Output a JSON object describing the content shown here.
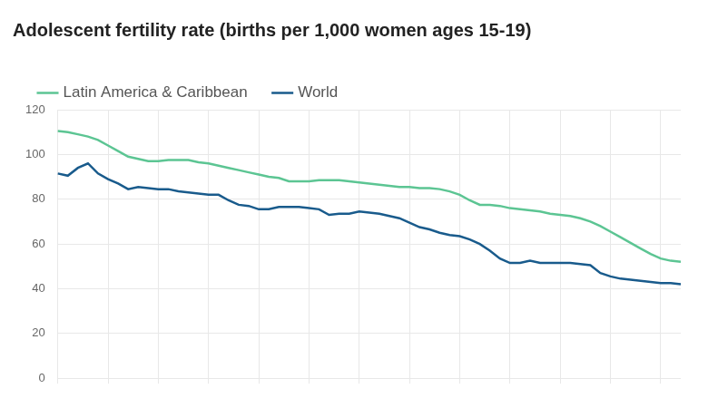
{
  "chart_data": {
    "type": "line",
    "title": "Adolescent fertility rate (births per 1,000 women ages 15-19)",
    "categories": [
      null,
      null,
      null,
      null,
      null,
      null,
      null,
      null,
      null,
      null,
      null,
      null,
      null,
      null,
      null,
      null,
      null,
      null,
      null,
      null,
      null,
      null,
      null,
      null,
      null,
      null,
      null,
      null,
      null,
      null,
      null,
      null,
      null,
      null,
      null,
      null,
      null,
      null,
      null,
      null,
      null,
      null,
      null,
      null,
      null,
      null,
      null,
      null,
      null,
      null,
      null,
      null,
      null,
      null,
      null,
      null,
      null,
      null,
      null,
      null,
      null,
      null,
      null
    ],
    "series": [
      {
        "name": "Latin America & Caribbean",
        "color": "#5cc593",
        "values": [
          110.5,
          110,
          109,
          108,
          106.5,
          104,
          101.5,
          99,
          98,
          97,
          97,
          97.5,
          97.5,
          97.5,
          96.5,
          96,
          95,
          94,
          93,
          92,
          91,
          90,
          89.5,
          88,
          88,
          88,
          88.5,
          88.5,
          88.5,
          88,
          87.5,
          87,
          86.5,
          86,
          85.5,
          85.5,
          85,
          85,
          84.5,
          83.5,
          82,
          79.5,
          77.5,
          77.5,
          77,
          76,
          75.5,
          75,
          74.5,
          73.5,
          73,
          72.5,
          71.5,
          70,
          68,
          65.5,
          63,
          60.5,
          58,
          55.5,
          53.5,
          52.5,
          52
        ]
      },
      {
        "name": "World",
        "color": "#195b8c",
        "values": [
          91.5,
          90.5,
          94,
          96,
          91.5,
          89,
          87,
          84.5,
          85.5,
          85,
          84.5,
          84.5,
          83.5,
          83,
          82.5,
          82,
          82,
          79.5,
          77.5,
          77,
          75.5,
          75.5,
          76.5,
          76.5,
          76.5,
          76,
          75.5,
          73,
          73.5,
          73.5,
          74.5,
          74,
          73.5,
          72.5,
          71.5,
          69.5,
          67.5,
          66.5,
          65,
          64,
          63.5,
          62,
          60,
          57,
          53.5,
          51.5,
          51.5,
          52.5,
          51.5,
          51.5,
          51.5,
          51.5,
          51,
          50.5,
          47,
          45.5,
          44.5,
          44,
          43.5,
          43,
          42.5,
          42.5,
          42
        ]
      }
    ],
    "ylim": [
      0,
      120
    ],
    "yticks": [
      0,
      20,
      40,
      60,
      80,
      100,
      120
    ],
    "grid": true,
    "legend": "top",
    "marker": "none",
    "tick_labels": "y"
  }
}
